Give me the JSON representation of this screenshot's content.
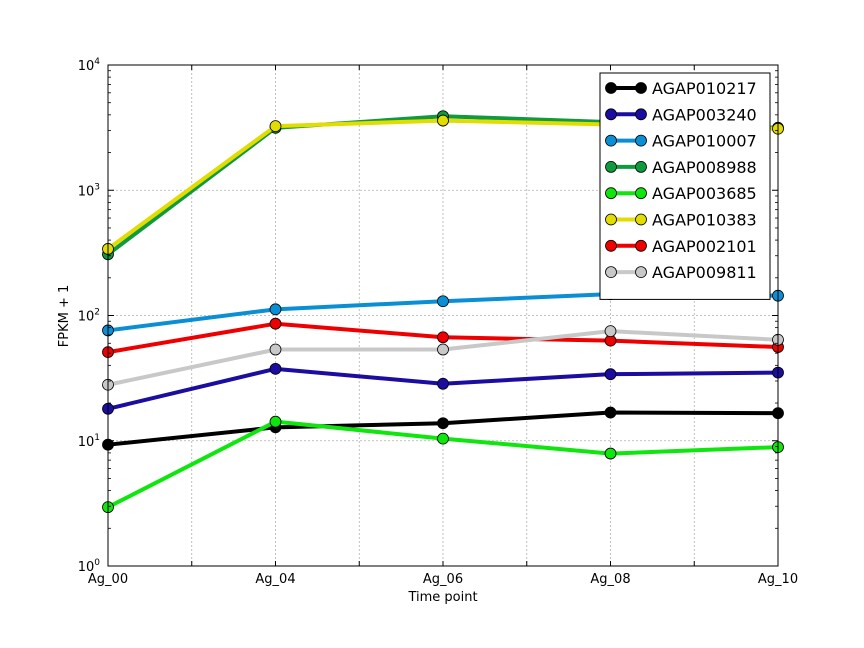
{
  "chart_data": {
    "type": "line",
    "title": "",
    "xlabel": "Time point",
    "ylabel": "FPKM + 1",
    "yscale": "log",
    "ylim": [
      1,
      10000
    ],
    "y_ticks": [
      {
        "value": 1,
        "base": "10",
        "exp": "0"
      },
      {
        "value": 10,
        "base": "10",
        "exp": "1"
      },
      {
        "value": 100,
        "base": "10",
        "exp": "2"
      },
      {
        "value": 1000,
        "base": "10",
        "exp": "3"
      },
      {
        "value": 10000,
        "base": "10",
        "exp": "4"
      }
    ],
    "categories": [
      "Ag_00",
      "Ag_04",
      "Ag_06",
      "Ag_08",
      "Ag_10"
    ],
    "grid": true,
    "legend_position": "top-right",
    "series": [
      {
        "name": "AGAP010217",
        "color": "#000000",
        "values": [
          9.3,
          12.8,
          13.8,
          16.8,
          16.6
        ]
      },
      {
        "name": "AGAP003240",
        "color": "#1a0da0",
        "values": [
          18,
          37.5,
          28.5,
          34,
          35
        ]
      },
      {
        "name": "AGAP010007",
        "color": "#0b8fd4",
        "values": [
          76,
          112,
          130,
          148,
          144
        ]
      },
      {
        "name": "AGAP008988",
        "color": "#0f9a3e",
        "values": [
          308,
          3150,
          3900,
          3500,
          3150
        ]
      },
      {
        "name": "AGAP003685",
        "color": "#0ee60e",
        "values": [
          2.95,
          14.2,
          10.4,
          7.9,
          8.9
        ]
      },
      {
        "name": "AGAP010383",
        "color": "#e2dc00",
        "values": [
          340,
          3250,
          3600,
          3350,
          3100
        ]
      },
      {
        "name": "AGAP002101",
        "color": "#ee0000",
        "values": [
          51,
          86,
          67,
          63,
          56
        ]
      },
      {
        "name": "AGAP009811",
        "color": "#c8c8c8",
        "values": [
          28,
          53.5,
          53.5,
          75,
          64
        ]
      }
    ]
  }
}
